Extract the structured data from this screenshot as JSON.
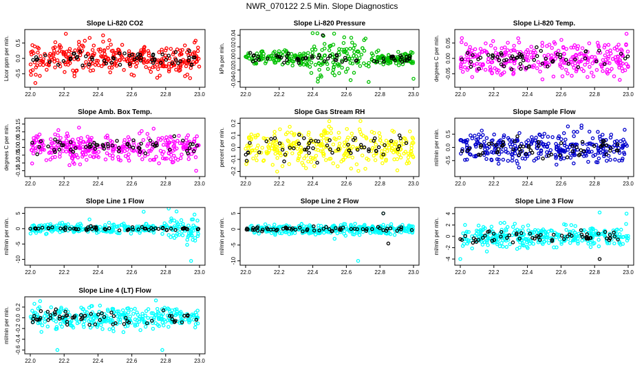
{
  "page": {
    "title": "NWR_070122  2.5 Min. Slope Diagnostics"
  },
  "chart_data": [
    {
      "type": "scatter",
      "title": "Slope Li-820 CO2",
      "ylabel": "Licor ppm per min.",
      "xlim": [
        22.0,
        23.0
      ],
      "ylim": [
        -0.85,
        0.85
      ],
      "xticks": [
        22.0,
        22.2,
        22.4,
        22.6,
        22.8,
        23.0
      ],
      "xtick_labels": [
        "22.0",
        "22.2",
        "22.4",
        "22.6",
        "22.8",
        "23.0"
      ],
      "yticks": [
        -0.5,
        0.0,
        0.5
      ],
      "ytick_labels": [
        "-0.5",
        "0.0",
        "0.5"
      ],
      "series": [
        {
          "color": "#ff0000",
          "n": 320,
          "spread": 0.26,
          "outliers": [
            [
              22.21,
              0.8
            ],
            [
              22.03,
              -0.8
            ],
            [
              22.43,
              0.75
            ]
          ]
        },
        {
          "color": "#000000",
          "n": 60,
          "spread": 0.14
        }
      ]
    },
    {
      "type": "scatter",
      "title": "Slope Li-820 Pressure",
      "ylabel": "kPa per min.",
      "xlim": [
        22.0,
        23.0
      ],
      "ylim": [
        -0.045,
        0.045
      ],
      "xticks": [
        22.0,
        22.2,
        22.4,
        22.6,
        22.8,
        23.0
      ],
      "xtick_labels": [
        "22.0",
        "22.2",
        "22.4",
        "22.6",
        "22.8",
        "23.0"
      ],
      "yticks": [
        -0.04,
        -0.02,
        0.0,
        0.02,
        0.04
      ],
      "ytick_labels": [
        "-0.04",
        "-0.02",
        "0.00",
        "0.02",
        "0.04"
      ],
      "series": [
        {
          "color": "#00c000",
          "n": 320,
          "spread": 0.006,
          "burst": [
            22.35,
            22.75,
            0.018
          ],
          "outliers": [
            [
              22.43,
              -0.04
            ],
            [
              22.47,
              0.025
            ],
            [
              23.0,
              -0.035
            ]
          ]
        },
        {
          "color": "#000000",
          "n": 60,
          "spread": 0.004,
          "outliers": [
            [
              22.46,
              0.04
            ]
          ]
        }
      ]
    },
    {
      "type": "scatter",
      "title": "Slope Li-820 Temp.",
      "ylabel": "degrees C per min.",
      "xlim": [
        22.0,
        23.0
      ],
      "ylim": [
        -0.085,
        0.085
      ],
      "xticks": [
        22.0,
        22.2,
        22.4,
        22.6,
        22.8,
        23.0
      ],
      "xtick_labels": [
        "22.0",
        "22.2",
        "22.4",
        "22.6",
        "22.8",
        "23.0"
      ],
      "yticks": [
        -0.05,
        0.0,
        0.05
      ],
      "ytick_labels": [
        "-0.05",
        "0.00",
        "0.05"
      ],
      "series": [
        {
          "color": "#ff00ff",
          "n": 320,
          "spread": 0.03,
          "outliers": [
            [
              22.99,
              0.08
            ],
            [
              22.95,
              -0.07
            ]
          ]
        },
        {
          "color": "#000000",
          "n": 60,
          "spread": 0.018
        }
      ]
    },
    {
      "type": "scatter",
      "title": "Slope Amb. Box Temp.",
      "ylabel": "degrees C per min.",
      "xlim": [
        22.0,
        23.0
      ],
      "ylim": [
        -0.17,
        0.17
      ],
      "xticks": [
        22.0,
        22.2,
        22.4,
        22.6,
        22.8,
        23.0
      ],
      "xtick_labels": [
        "22.0",
        "22.2",
        "22.4",
        "22.6",
        "22.8",
        "23.0"
      ],
      "yticks": [
        -0.15,
        -0.1,
        -0.05,
        0.0,
        0.05,
        0.1,
        0.15
      ],
      "ytick_labels": [
        "-0.15",
        "-0.10",
        "-0.05",
        "0.00",
        "0.05",
        "0.10",
        "0.15"
      ],
      "series": [
        {
          "color": "#ff00ff",
          "n": 320,
          "spread": 0.045,
          "outliers": [
            [
              22.98,
              -0.15
            ]
          ]
        },
        {
          "color": "#000000",
          "n": 60,
          "spread": 0.03
        }
      ]
    },
    {
      "type": "scatter",
      "title": "Slope Gas Stream RH",
      "ylabel": "percent per min.",
      "xlim": [
        22.0,
        23.0
      ],
      "ylim": [
        -0.22,
        0.22
      ],
      "xticks": [
        22.0,
        22.2,
        22.4,
        22.6,
        22.8,
        23.0
      ],
      "xtick_labels": [
        "22.0",
        "22.2",
        "22.4",
        "22.6",
        "22.8",
        "23.0"
      ],
      "yticks": [
        -0.2,
        -0.1,
        0.0,
        0.1,
        0.2
      ],
      "ytick_labels": [
        "-0.2",
        "-0.1",
        "0.0",
        "0.1",
        "0.2"
      ],
      "series": [
        {
          "color": "#ffff00",
          "n": 320,
          "spread": 0.08
        },
        {
          "color": "#000000",
          "n": 60,
          "spread": 0.06
        }
      ]
    },
    {
      "type": "scatter",
      "title": "Slope Sample Flow",
      "ylabel": "ml/min per min.",
      "xlim": [
        22.0,
        23.0
      ],
      "ylim": [
        -1.0,
        1.0
      ],
      "xticks": [
        22.0,
        22.2,
        22.4,
        22.6,
        22.8,
        23.0
      ],
      "xtick_labels": [
        "22.0",
        "22.2",
        "22.4",
        "22.6",
        "22.8",
        "23.0"
      ],
      "yticks": [
        -0.5,
        0.0,
        0.5
      ],
      "ytick_labels": [
        "-0.5",
        "0.0",
        "0.5"
      ],
      "series": [
        {
          "color": "#0000cc",
          "n": 320,
          "spread": 0.3
        },
        {
          "color": "#000000",
          "n": 60,
          "spread": 0.2
        }
      ]
    },
    {
      "type": "scatter",
      "title": "Slope Line 1 Flow",
      "ylabel": "ml/min per min.",
      "xlim": [
        22.0,
        23.0
      ],
      "ylim": [
        -11,
        6
      ],
      "xticks": [
        22.0,
        22.2,
        22.4,
        22.6,
        22.8,
        23.0
      ],
      "xtick_labels": [
        "22.0",
        "22.2",
        "22.4",
        "22.6",
        "22.8",
        "23.0"
      ],
      "yticks": [
        -10,
        -5,
        0,
        5
      ],
      "ytick_labels": [
        "-10",
        "-5",
        "0",
        "5"
      ],
      "series": [
        {
          "color": "#00ffff",
          "n": 320,
          "spread": 0.8,
          "burst": [
            22.8,
            23.0,
            2.5
          ],
          "outliers": [
            [
              22.95,
              -10.5
            ],
            [
              22.67,
              5.5
            ],
            [
              22.35,
              3
            ]
          ]
        },
        {
          "color": "#000000",
          "n": 60,
          "spread": 0.3
        }
      ]
    },
    {
      "type": "scatter",
      "title": "Slope Line 2 Flow",
      "ylabel": "ml/min per min.",
      "xlim": [
        22.0,
        23.0
      ],
      "ylim": [
        -10.5,
        6
      ],
      "xticks": [
        22.0,
        22.2,
        22.4,
        22.6,
        22.8,
        23.0
      ],
      "xtick_labels": [
        "22.0",
        "22.2",
        "22.4",
        "22.6",
        "22.8",
        "23.0"
      ],
      "yticks": [
        -10,
        -5,
        0,
        5
      ],
      "ytick_labels": [
        "-10",
        "-5",
        "0",
        "5"
      ],
      "series": [
        {
          "color": "#00ffff",
          "n": 320,
          "spread": 0.8,
          "outliers": [
            [
              22.67,
              -10
            ],
            [
              22.53,
              -3
            ],
            [
              22.82,
              5
            ]
          ]
        },
        {
          "color": "#000000",
          "n": 60,
          "spread": 0.4,
          "outliers": [
            [
              22.85,
              -4.5
            ],
            [
              22.82,
              5
            ]
          ]
        }
      ]
    },
    {
      "type": "scatter",
      "title": "Slope Line 3 Flow",
      "ylabel": "ml/min per min.",
      "xlim": [
        22.0,
        23.0
      ],
      "ylim": [
        -4.6,
        4.6
      ],
      "xticks": [
        22.0,
        22.2,
        22.4,
        22.6,
        22.8,
        23.0
      ],
      "xtick_labels": [
        "22.0",
        "22.2",
        "22.4",
        "22.6",
        "22.8",
        "23.0"
      ],
      "yticks": [
        -4,
        -2,
        0,
        2,
        4
      ],
      "ytick_labels": [
        "-4",
        "-2",
        "0",
        "2",
        "4"
      ],
      "series": [
        {
          "color": "#00ffff",
          "n": 320,
          "spread": 1.0,
          "outliers": [
            [
              22.83,
              4.2
            ],
            [
              22.0,
              -4.0
            ],
            [
              22.99,
              4.0
            ]
          ]
        },
        {
          "color": "#000000",
          "n": 60,
          "spread": 0.5,
          "outliers": [
            [
              22.83,
              -4.0
            ]
          ]
        }
      ]
    },
    {
      "type": "scatter",
      "title": "Slope Line 4 (LT) Flow",
      "ylabel": "ml/min per min.",
      "xlim": [
        22.0,
        23.0
      ],
      "ylim": [
        -0.62,
        0.34
      ],
      "xticks": [
        22.0,
        22.2,
        22.4,
        22.6,
        22.8,
        23.0
      ],
      "xtick_labels": [
        "22.0",
        "22.2",
        "22.4",
        "22.6",
        "22.8",
        "23.0"
      ],
      "yticks": [
        -0.6,
        -0.4,
        -0.2,
        0.0,
        0.2
      ],
      "ytick_labels": [
        "-0.6",
        "-0.4",
        "-0.2",
        "0.0",
        "0.2"
      ],
      "series": [
        {
          "color": "#00ffff",
          "n": 320,
          "spread": 0.11,
          "outliers": [
            [
              22.16,
              -0.6
            ],
            [
              22.78,
              -0.6
            ]
          ]
        },
        {
          "color": "#000000",
          "n": 60,
          "spread": 0.07
        }
      ]
    }
  ]
}
